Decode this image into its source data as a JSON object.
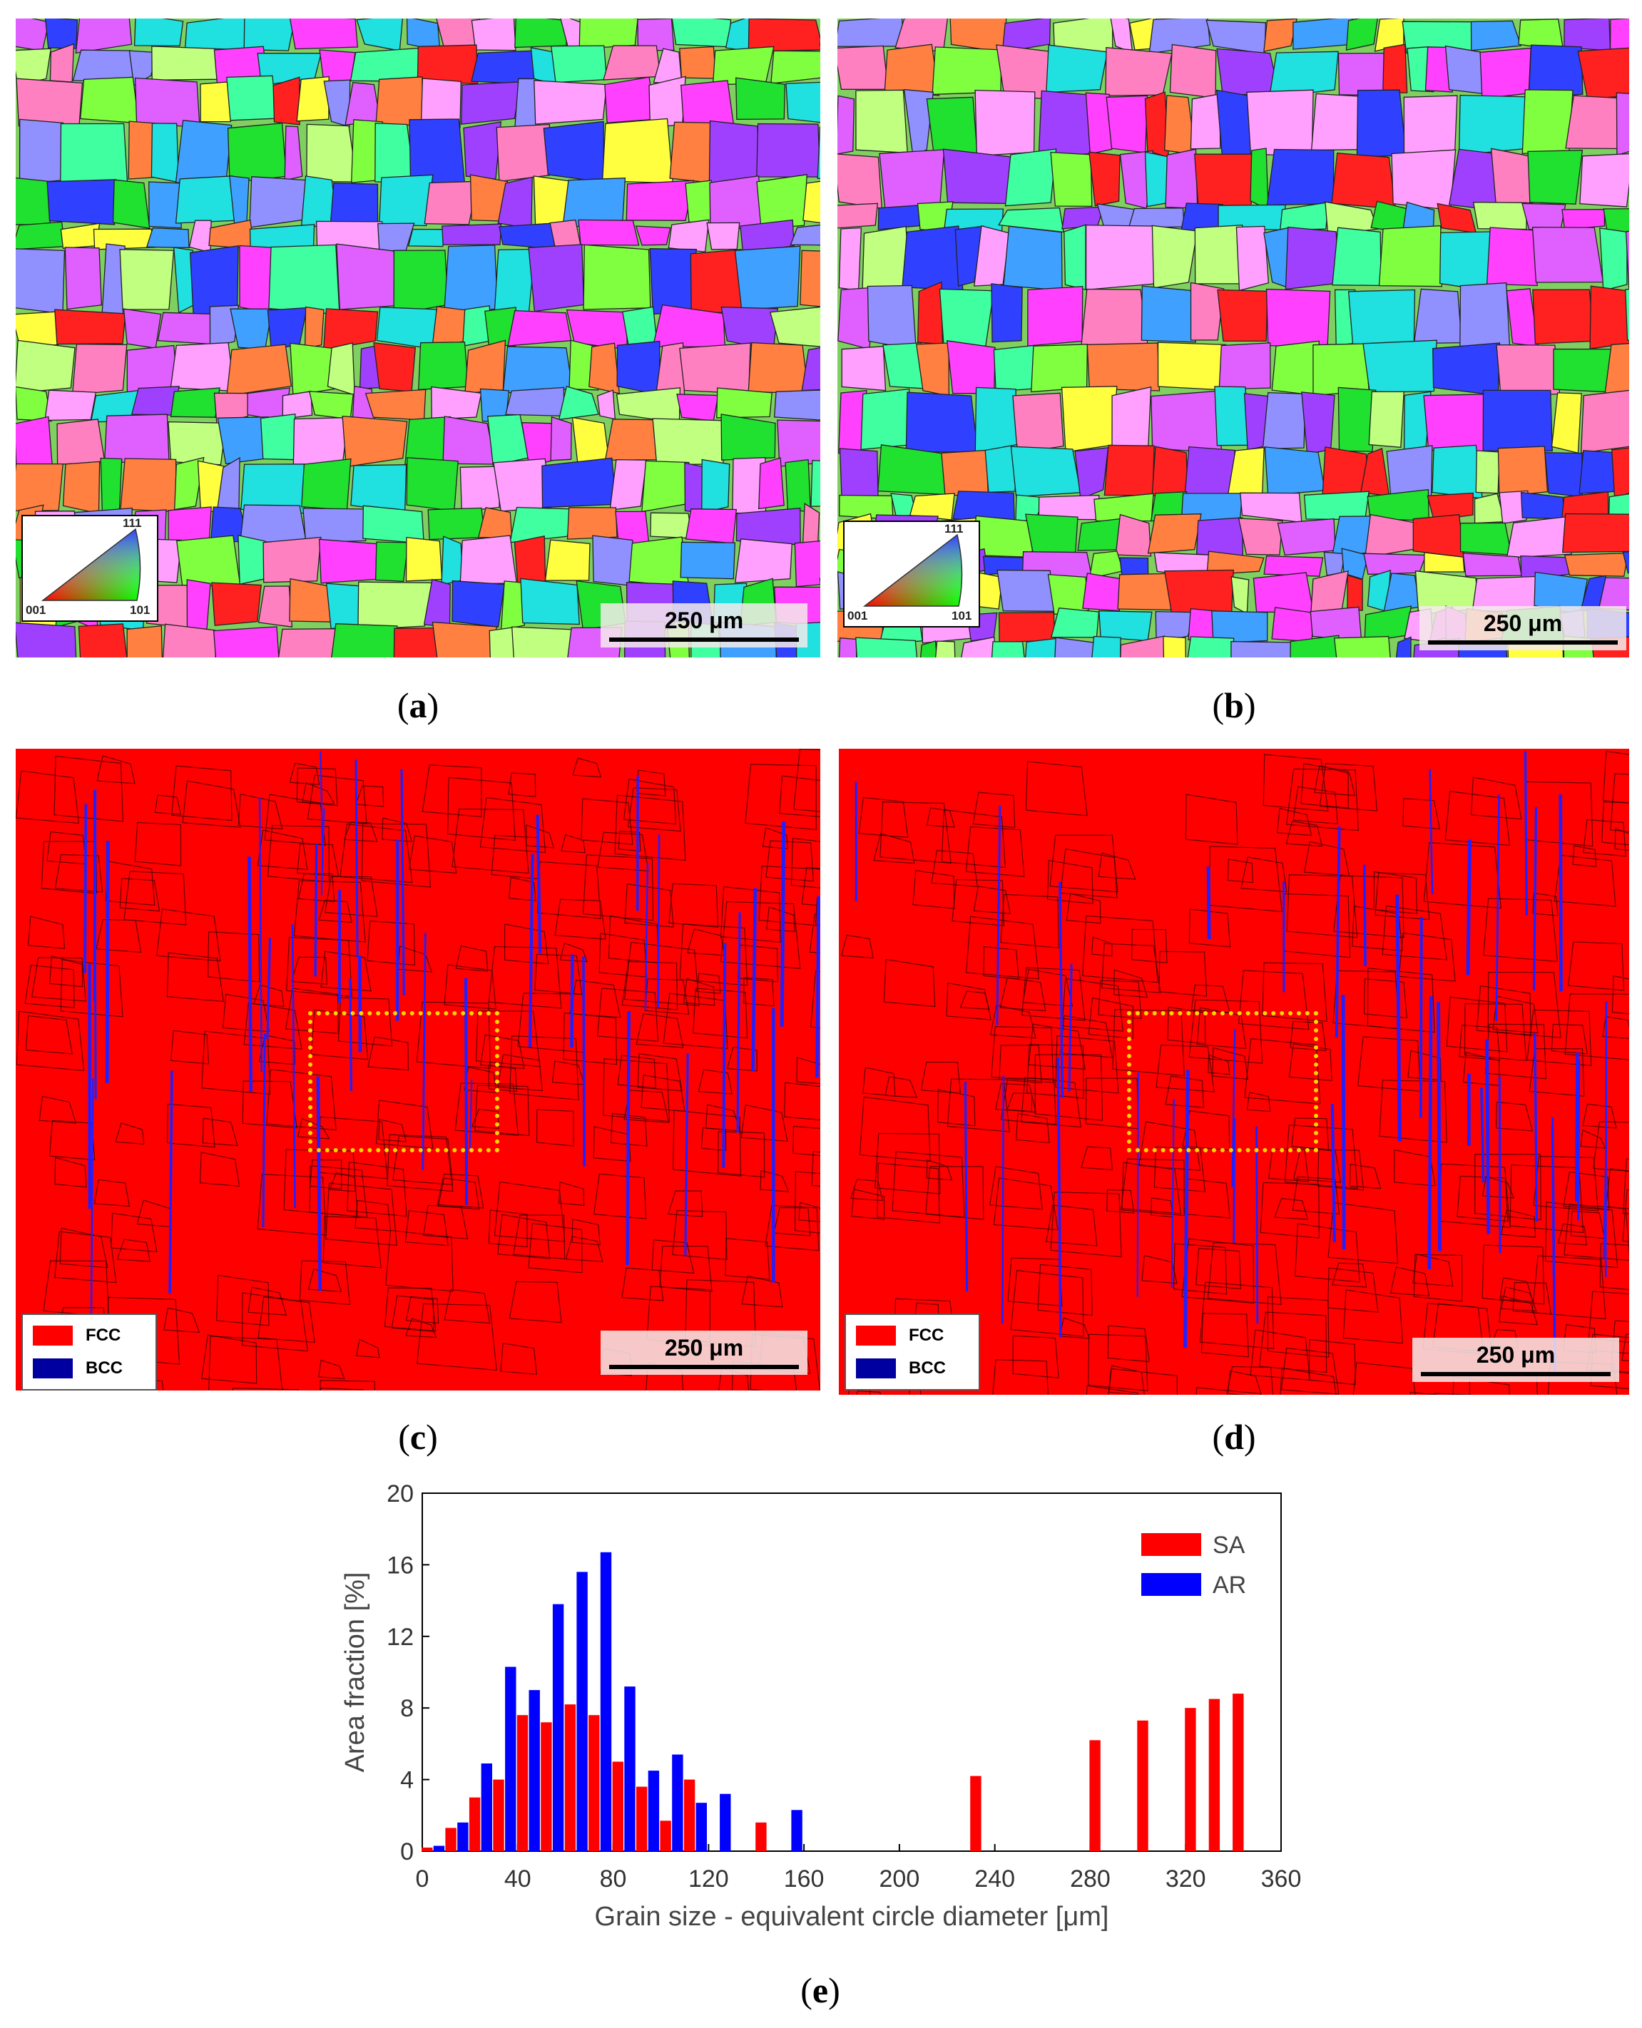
{
  "panels": {
    "a": {
      "caption": "a",
      "scale_bar": "250 μm",
      "ipf_labels": {
        "top": "111",
        "left": "001",
        "right": "101"
      }
    },
    "b": {
      "caption": "b",
      "scale_bar": "250 μm",
      "ipf_labels": {
        "top": "111",
        "left": "001",
        "right": "101"
      }
    },
    "c": {
      "caption": "c",
      "scale_bar": "250 μm",
      "legend": [
        {
          "label": "FCC",
          "color": "#ff0000"
        },
        {
          "label": "BCC",
          "color": "#0000a0"
        }
      ]
    },
    "d": {
      "caption": "d",
      "scale_bar": "250 μm",
      "legend": [
        {
          "label": "FCC",
          "color": "#ff0000"
        },
        {
          "label": "BCC",
          "color": "#0000a0"
        }
      ]
    },
    "e": {
      "caption": "e"
    }
  },
  "chart_data": {
    "type": "bar",
    "xlabel": "Grain size - equivalent circle diameter  [μm]",
    "ylabel": "Area fraction [%]",
    "xlim": [
      0,
      360
    ],
    "ylim": [
      0,
      20
    ],
    "xticks": [
      0,
      40,
      80,
      120,
      160,
      200,
      240,
      280,
      320,
      360
    ],
    "yticks": [
      0,
      4,
      8,
      12,
      16,
      20
    ],
    "legend_position": "top-right",
    "series": [
      {
        "name": "SA",
        "color": "#ff0000",
        "points": [
          [
            2,
            0.2
          ],
          [
            12,
            1.3
          ],
          [
            22,
            3.0
          ],
          [
            32,
            4.0
          ],
          [
            42,
            7.6
          ],
          [
            52,
            7.2
          ],
          [
            62,
            8.2
          ],
          [
            72,
            7.6
          ],
          [
            82,
            5.0
          ],
          [
            92,
            3.6
          ],
          [
            102,
            1.7
          ],
          [
            112,
            4.0
          ],
          [
            142,
            1.6
          ],
          [
            232,
            4.2
          ],
          [
            282,
            6.2
          ],
          [
            302,
            7.3
          ],
          [
            322,
            8.0
          ],
          [
            332,
            8.5
          ],
          [
            342,
            8.8
          ]
        ]
      },
      {
        "name": "AR",
        "color": "#0000ff",
        "points": [
          [
            7,
            0.3
          ],
          [
            17,
            1.6
          ],
          [
            27,
            4.9
          ],
          [
            37,
            10.3
          ],
          [
            47,
            9.0
          ],
          [
            57,
            13.8
          ],
          [
            67,
            15.6
          ],
          [
            77,
            16.7
          ],
          [
            87,
            9.2
          ],
          [
            97,
            4.5
          ],
          [
            107,
            5.4
          ],
          [
            117,
            2.7
          ],
          [
            127,
            3.2
          ],
          [
            157,
            2.3
          ]
        ]
      }
    ]
  }
}
